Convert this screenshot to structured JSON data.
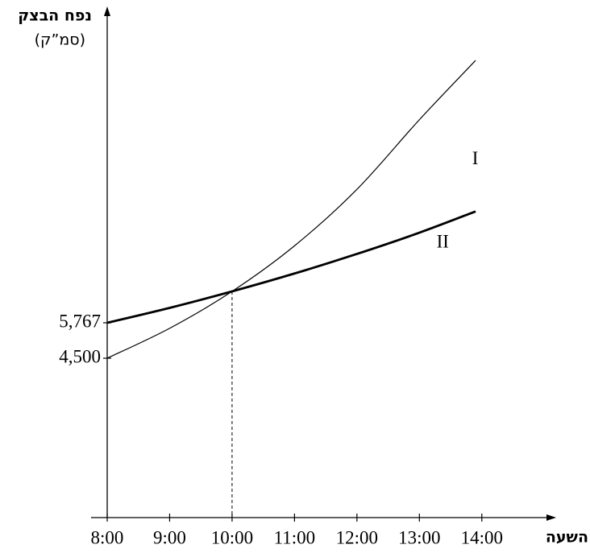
{
  "chart_data": {
    "type": "line",
    "y_label": "נפח הבצק",
    "y_unit": "(סמ”ק)",
    "x_label": "השעה",
    "x": [
      8,
      9,
      10,
      11,
      12,
      13,
      13.9
    ],
    "series": [
      {
        "name": "I",
        "color": "#000000",
        "width": 1.2,
        "values": [
          4500,
          5570,
          6890,
          8520,
          10540,
          13030,
          15150
        ]
      },
      {
        "name": "II",
        "color": "#000000",
        "width": 2.8,
        "values": [
          5767,
          6300,
          6890,
          7530,
          8230,
          8990,
          9750
        ]
      }
    ],
    "xlim": [
      8,
      15.1
    ],
    "ylim": [
      -1200,
      16880
    ],
    "xticks": [
      {
        "value": 8,
        "label": "8:00"
      },
      {
        "value": 9,
        "label": "9:00"
      },
      {
        "value": 10,
        "label": "10:00"
      },
      {
        "value": 11,
        "label": "11:00"
      },
      {
        "value": 12,
        "label": "12:00"
      },
      {
        "value": 13,
        "label": "13:00"
      },
      {
        "value": 14,
        "label": "14:00"
      }
    ],
    "yticks": [
      {
        "value": 4500,
        "label": "4,500"
      },
      {
        "value": 5767,
        "label": "5,767"
      }
    ],
    "grid": false
  }
}
